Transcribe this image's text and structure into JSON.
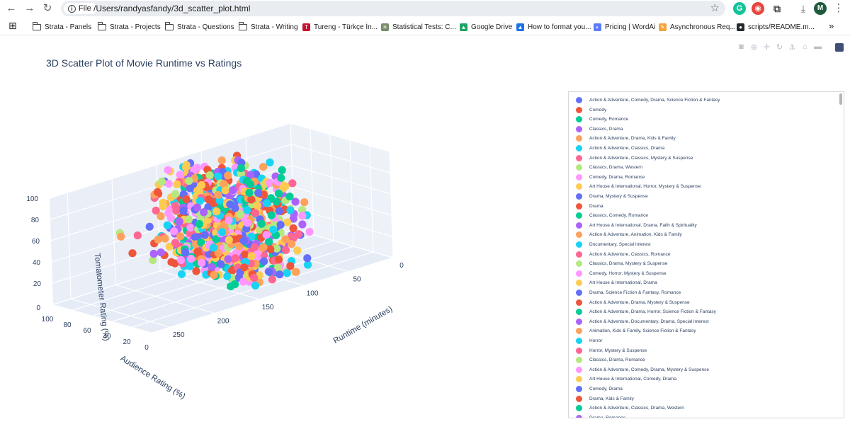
{
  "browser": {
    "back_glyph": "←",
    "forward_glyph": "→",
    "reload_glyph": "↻",
    "file_chip_label": "File",
    "info_glyph": "i",
    "url": "/Users/randyasfandy/3d_scatter_plot.html",
    "star_glyph": "☆",
    "profile_letter": "M",
    "menu_glyph": "⋮",
    "download_glyph": "⤓",
    "extensions": [
      {
        "name": "grammarly-icon",
        "letter": "G",
        "color": "#15c39a"
      },
      {
        "name": "colorful-extension-icon",
        "letter": "◉",
        "color": "#e8453c"
      },
      {
        "name": "puzzle-extension-icon",
        "letter": "⧉",
        "color": "#5f6368"
      }
    ]
  },
  "bookmarks": {
    "apps_glyph": "⊞",
    "items": [
      {
        "label": "Strata - Panels",
        "icon": "folder-icon"
      },
      {
        "label": "Strata - Projects",
        "icon": "folder-icon"
      },
      {
        "label": "Strata - Questions",
        "icon": "folder-icon"
      },
      {
        "label": "Strata - Writing",
        "icon": "folder-icon"
      },
      {
        "label": "Tureng - Türkçe İn...",
        "icon": "tureng-icon",
        "color": "#c8102e",
        "glyph": "T"
      },
      {
        "label": "Statistical Tests: C...",
        "icon": "spark-icon",
        "color": "#7a8c6a",
        "glyph": "✳"
      },
      {
        "label": "Google Drive",
        "icon": "google-drive-icon",
        "color": "#1fa463",
        "glyph": "▲"
      },
      {
        "label": "How to format you...",
        "icon": "triangle-icon",
        "color": "#1a73e8",
        "glyph": "▲"
      },
      {
        "label": "Pricing | WordAi",
        "icon": "wordai-icon",
        "color": "#5b7cfa",
        "glyph": "◐"
      },
      {
        "label": "Asynchronous Req...",
        "icon": "pen-icon",
        "color": "#f2a33a",
        "glyph": "✎"
      },
      {
        "label": "scripts/README.m...",
        "icon": "github-icon",
        "color": "#24292f",
        "glyph": "●"
      }
    ],
    "more_glyph": "»"
  },
  "modebar": {
    "icons": [
      "camera-icon",
      "zoom-icon",
      "pan-icon",
      "orbit-icon",
      "turntable-icon",
      "home-icon",
      "reset-icon"
    ],
    "glyphs": [
      "◙",
      "⊕",
      "✛",
      "↻",
      "⚓",
      "⌂",
      "▬"
    ]
  },
  "chart_data": {
    "type": "scatter",
    "mode": "3d",
    "title": "3D Scatter Plot of Movie Runtime vs Ratings",
    "xlabel": "Runtime (minutes)",
    "ylabel": "Audience Rating (%)",
    "zlabel": "Tomatometer Rating (%)",
    "x_ticks": [
      "0",
      "50",
      "100",
      "150",
      "200",
      "250"
    ],
    "y_ticks": [
      "0",
      "20",
      "40",
      "60",
      "80",
      "100"
    ],
    "z_ticks": [
      "0",
      "20",
      "40",
      "60",
      "80",
      "100"
    ],
    "xlim": [
      0,
      270
    ],
    "ylim": [
      0,
      100
    ],
    "zlim": [
      0,
      100
    ],
    "grid": true,
    "legend_placement": "right",
    "marker_colors": [
      "#636efa",
      "#ef553b",
      "#00cc96",
      "#ab63fa",
      "#ffa15a",
      "#19d3f3",
      "#ff6692",
      "#b6e880",
      "#ff97ff",
      "#fecb52"
    ],
    "series": [
      {
        "name": "Action & Adventure, Comedy, Drama, Science Fiction & Fantasy",
        "color": "#636efa"
      },
      {
        "name": "Comedy",
        "color": "#ef553b"
      },
      {
        "name": "Comedy, Romance",
        "color": "#00cc96"
      },
      {
        "name": "Classics, Drama",
        "color": "#ab63fa"
      },
      {
        "name": "Action & Adventure, Drama, Kids & Family",
        "color": "#ffa15a"
      },
      {
        "name": "Action & Adventure, Classics, Drama",
        "color": "#19d3f3"
      },
      {
        "name": "Action & Adventure, Classics, Mystery & Suspense",
        "color": "#ff6692"
      },
      {
        "name": "Classics, Drama, Western",
        "color": "#b6e880"
      },
      {
        "name": "Comedy, Drama, Romance",
        "color": "#ff97ff"
      },
      {
        "name": "Art House & International, Horror, Mystery & Suspense",
        "color": "#fecb52"
      },
      {
        "name": "Drama, Mystery & Suspense",
        "color": "#636efa"
      },
      {
        "name": "Drama",
        "color": "#ef553b"
      },
      {
        "name": "Classics, Comedy, Romance",
        "color": "#00cc96"
      },
      {
        "name": "Art House & International, Drama, Faith & Spirituality",
        "color": "#ab63fa"
      },
      {
        "name": "Action & Adventure, Animation, Kids & Family",
        "color": "#ffa15a"
      },
      {
        "name": "Documentary, Special Interest",
        "color": "#19d3f3"
      },
      {
        "name": "Action & Adventure, Classics, Romance",
        "color": "#ff6692"
      },
      {
        "name": "Classics, Drama, Mystery & Suspense",
        "color": "#b6e880"
      },
      {
        "name": "Comedy, Horror, Mystery & Suspense",
        "color": "#ff97ff"
      },
      {
        "name": "Art House & International, Drama",
        "color": "#fecb52"
      },
      {
        "name": "Drama, Science Fiction & Fantasy, Romance",
        "color": "#636efa"
      },
      {
        "name": "Action & Adventure, Drama, Mystery & Suspense",
        "color": "#ef553b"
      },
      {
        "name": "Action & Adventure, Drama, Horror, Science Fiction & Fantasy",
        "color": "#00cc96"
      },
      {
        "name": "Action & Adventure, Documentary, Drama, Special Interest",
        "color": "#ab63fa"
      },
      {
        "name": "Animation, Kids & Family, Science Fiction & Fantasy",
        "color": "#ffa15a"
      },
      {
        "name": "Horror",
        "color": "#19d3f3"
      },
      {
        "name": "Horror, Mystery & Suspense",
        "color": "#ff6692"
      },
      {
        "name": "Classics, Drama, Romance",
        "color": "#b6e880"
      },
      {
        "name": "Action & Adventure, Comedy, Drama, Mystery & Suspense",
        "color": "#ff97ff"
      },
      {
        "name": "Art House & International, Comedy, Drama",
        "color": "#fecb52"
      },
      {
        "name": "Comedy, Drama",
        "color": "#636efa"
      },
      {
        "name": "Drama, Kids & Family",
        "color": "#ef553b"
      },
      {
        "name": "Action & Adventure, Classics, Drama, Western",
        "color": "#00cc96"
      },
      {
        "name": "Drama, Romance",
        "color": "#ab63fa"
      }
    ],
    "outliers": [
      {
        "x": 240,
        "y": 45,
        "z": 55
      },
      {
        "x": 225,
        "y": 70,
        "z": 60
      },
      {
        "x": 215,
        "y": 80,
        "z": 58
      },
      {
        "x": 150,
        "y": 20,
        "z": 15
      },
      {
        "x": 200,
        "y": 60,
        "z": 40
      },
      {
        "x": 190,
        "y": 85,
        "z": 48
      }
    ]
  }
}
